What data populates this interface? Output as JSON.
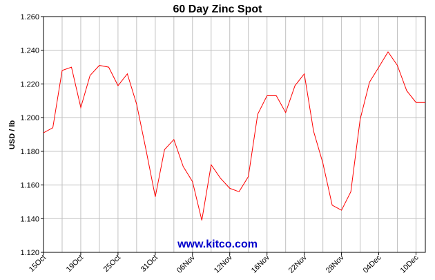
{
  "chart_data": {
    "type": "line",
    "title": "60 Day Zinc Spot",
    "xlabel": "",
    "ylabel": "USD / lb",
    "ylim": [
      1.12,
      1.26
    ],
    "yticks": [
      "1.120",
      "1.140",
      "1.160",
      "1.180",
      "1.200",
      "1.220",
      "1.240",
      "1.260"
    ],
    "grid": true,
    "x_tick_labels": [
      {
        "index": 0,
        "label": "15Oct"
      },
      {
        "index": 4,
        "label": "19Oct"
      },
      {
        "index": 8,
        "label": "25Oct"
      },
      {
        "index": 12,
        "label": "31Oct"
      },
      {
        "index": 16,
        "label": "06Nov"
      },
      {
        "index": 20,
        "label": "12Nov"
      },
      {
        "index": 24,
        "label": "16Nov"
      },
      {
        "index": 28,
        "label": "22Nov"
      },
      {
        "index": 32,
        "label": "28Nov"
      },
      {
        "index": 36,
        "label": "04Dec"
      },
      {
        "index": 40,
        "label": "10Dec"
      }
    ],
    "series": [
      {
        "color": "#ff0000",
        "values": [
          1.191,
          1.194,
          1.228,
          1.23,
          1.206,
          1.225,
          1.231,
          1.23,
          1.219,
          1.226,
          1.208,
          1.181,
          1.153,
          1.181,
          1.187,
          1.171,
          1.162,
          1.139,
          1.172,
          1.164,
          1.158,
          1.156,
          1.165,
          1.202,
          1.213,
          1.213,
          1.203,
          1.219,
          1.226,
          1.192,
          1.173,
          1.148,
          1.145,
          1.156,
          1.199,
          1.221,
          1.23,
          1.239,
          1.231,
          1.216,
          1.209,
          1.209
        ]
      }
    ]
  },
  "watermark": {
    "text": "www.kitco.com",
    "color": "#0000cc"
  }
}
